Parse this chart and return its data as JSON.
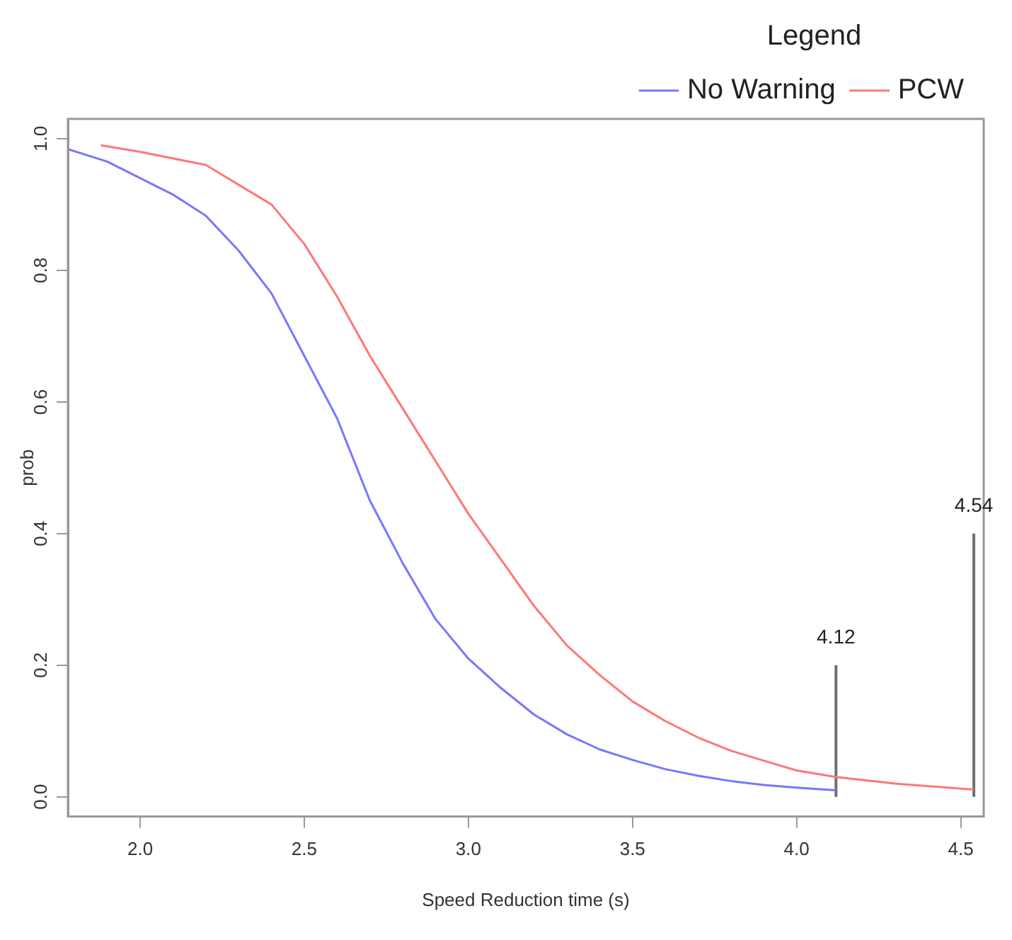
{
  "chart_data": {
    "type": "line",
    "xlabel": "Speed Reduction time (s)",
    "ylabel": "prob",
    "legend_title": "Legend",
    "legend": "top right",
    "marker": "none",
    "line_style": "solid",
    "grid": false,
    "xlim": [
      1.78,
      4.57
    ],
    "xticks": [
      {
        "value": 2,
        "label": "2.0"
      },
      2.5,
      {
        "value": 3,
        "label": "3.0"
      },
      3.5,
      {
        "value": 4,
        "label": "4.0"
      },
      4.5
    ],
    "ylim": [
      -0.03,
      1.03
    ],
    "yticks": [
      {
        "value": 0,
        "label": "0.0"
      },
      0.2,
      0.4,
      0.6,
      0.8,
      {
        "value": 1,
        "label": "1.0"
      }
    ],
    "series": [
      {
        "name": "No Warning",
        "color": "#7777ff",
        "x": [
          1.78,
          1.9,
          2.0,
          2.1,
          2.2,
          2.3,
          2.4,
          2.5,
          2.6,
          2.7,
          2.8,
          2.9,
          3.0,
          3.1,
          3.2,
          3.3,
          3.4,
          3.5,
          3.6,
          3.7,
          3.8,
          3.9,
          4.0,
          4.12
        ],
        "values": [
          0.984,
          0.965,
          0.94,
          0.915,
          0.883,
          0.83,
          0.765,
          0.67,
          0.575,
          0.45,
          0.355,
          0.27,
          0.21,
          0.165,
          0.125,
          0.095,
          0.072,
          0.056,
          0.042,
          0.032,
          0.024,
          0.018,
          0.014,
          0.01
        ]
      },
      {
        "name": "PCW",
        "color": "#ff7777",
        "x": [
          1.88,
          2.0,
          2.2,
          2.4,
          2.5,
          2.6,
          2.7,
          2.8,
          2.9,
          3.0,
          3.1,
          3.2,
          3.3,
          3.4,
          3.5,
          3.6,
          3.7,
          3.8,
          3.9,
          4.0,
          4.12,
          4.3,
          4.54
        ],
        "values": [
          0.99,
          0.98,
          0.96,
          0.9,
          0.84,
          0.76,
          0.67,
          0.59,
          0.51,
          0.43,
          0.36,
          0.29,
          0.23,
          0.185,
          0.145,
          0.115,
          0.09,
          0.07,
          0.055,
          0.04,
          0.03,
          0.02,
          0.011
        ]
      },
      {
        "color": "#707070",
        "x": [
          4.12,
          4.12
        ],
        "values": [
          0.0,
          0.2
        ]
      },
      {
        "color": "#707070",
        "x": [
          4.54,
          4.54
        ],
        "values": [
          0.0,
          0.4
        ]
      }
    ],
    "annotations": [
      {
        "text": "4.12",
        "x": 4.12,
        "y": 0.2
      },
      {
        "text": "4.54",
        "x": 4.54,
        "y": 0.4
      }
    ]
  }
}
